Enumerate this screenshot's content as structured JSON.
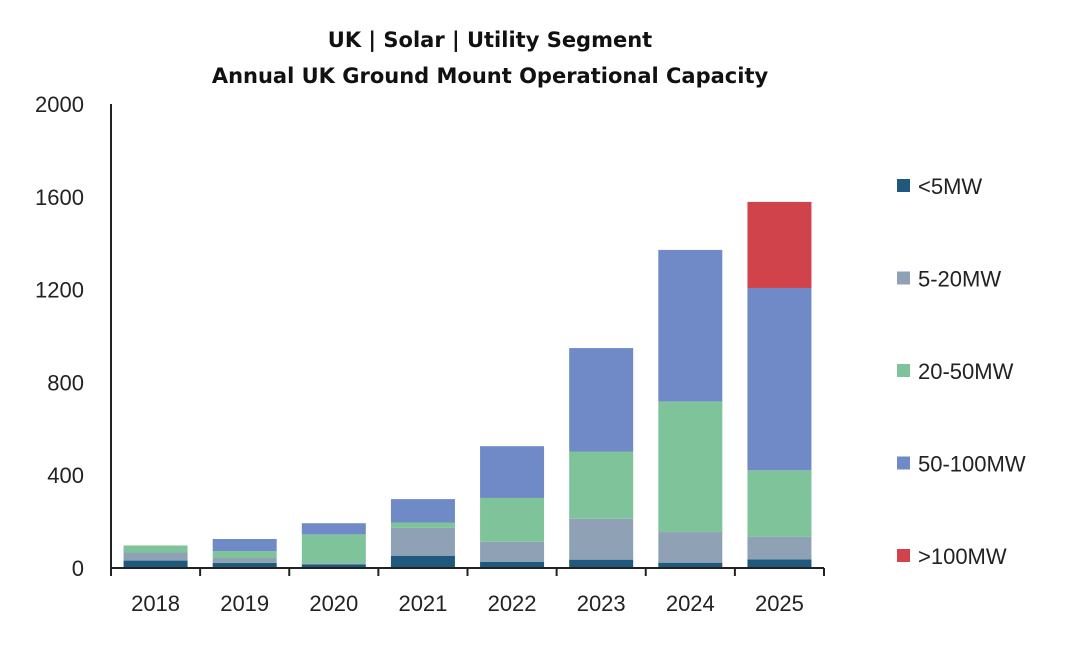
{
  "chart_data": {
    "type": "bar",
    "stacked": true,
    "title": "UK | Solar | Utility Segment",
    "subtitle": "Annual UK Ground Mount Operational Capacity",
    "xlabel": "",
    "ylabel": "",
    "ylim": [
      0,
      2000
    ],
    "yticks": [
      0,
      400,
      800,
      1200,
      1600,
      2000
    ],
    "grid": false,
    "legend_position": "right",
    "categories": [
      "2018",
      "2019",
      "2020",
      "2021",
      "2022",
      "2023",
      "2024",
      "2025"
    ],
    "series": [
      {
        "name": "<5MW",
        "color": "#1f5a7e",
        "values": [
          32,
          22,
          15,
          53,
          27,
          36,
          23,
          37
        ]
      },
      {
        "name": "5-20MW",
        "color": "#8fa2b5",
        "values": [
          35,
          21,
          5,
          120,
          86,
          176,
          132,
          98
        ]
      },
      {
        "name": "20-50MW",
        "color": "#7fc39b",
        "values": [
          30,
          30,
          125,
          23,
          189,
          290,
          563,
          286
        ]
      },
      {
        "name": "50-100MW",
        "color": "#6f8ac6",
        "values": [
          0,
          52,
          48,
          101,
          223,
          446,
          653,
          786
        ]
      },
      {
        "name": ">100MW",
        "color": "#d0434a",
        "values": [
          0,
          0,
          0,
          0,
          0,
          0,
          0,
          371
        ]
      }
    ]
  }
}
